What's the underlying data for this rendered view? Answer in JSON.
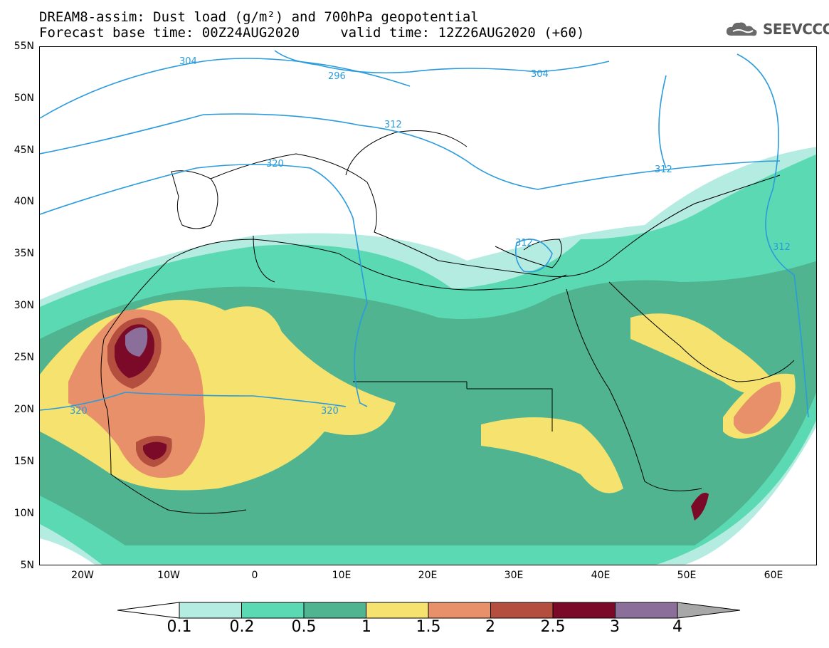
{
  "title": {
    "line1": "DREAM8-assim: Dust load (g/m²) and 700hPa geopotential",
    "line2": "Forecast base time: 00Z24AUG2020     valid time: 12Z26AUG2020 (+60)"
  },
  "logo": {
    "text": "SEEVCCC",
    "icon": "cloud-icon"
  },
  "axes": {
    "lat_labels": [
      "55N",
      "50N",
      "45N",
      "40N",
      "35N",
      "30N",
      "25N",
      "20N",
      "15N",
      "10N",
      "5N"
    ],
    "lon_labels": [
      "20W",
      "10W",
      "0",
      "10E",
      "20E",
      "30E",
      "40E",
      "50E",
      "60E"
    ],
    "lat_range": [
      5,
      55
    ],
    "lon_range": [
      -25,
      65
    ]
  },
  "contours": {
    "labels": [
      "304",
      "296",
      "304",
      "312",
      "320",
      "312",
      "312",
      "312",
      "320",
      "320"
    ]
  },
  "colorbar": {
    "levels": [
      "0.1",
      "0.2",
      "0.5",
      "1",
      "1.5",
      "2",
      "2.5",
      "3",
      "4"
    ],
    "colors": [
      "#b4ece2",
      "#5ad9b3",
      "#4fb48f",
      "#f5e26f",
      "#e8906a",
      "#b44f3f",
      "#7b0a28",
      "#8c6e9a",
      "#a8a8a8"
    ]
  },
  "colors": {
    "contour": "#2a9bdc",
    "coast": "#000000"
  }
}
